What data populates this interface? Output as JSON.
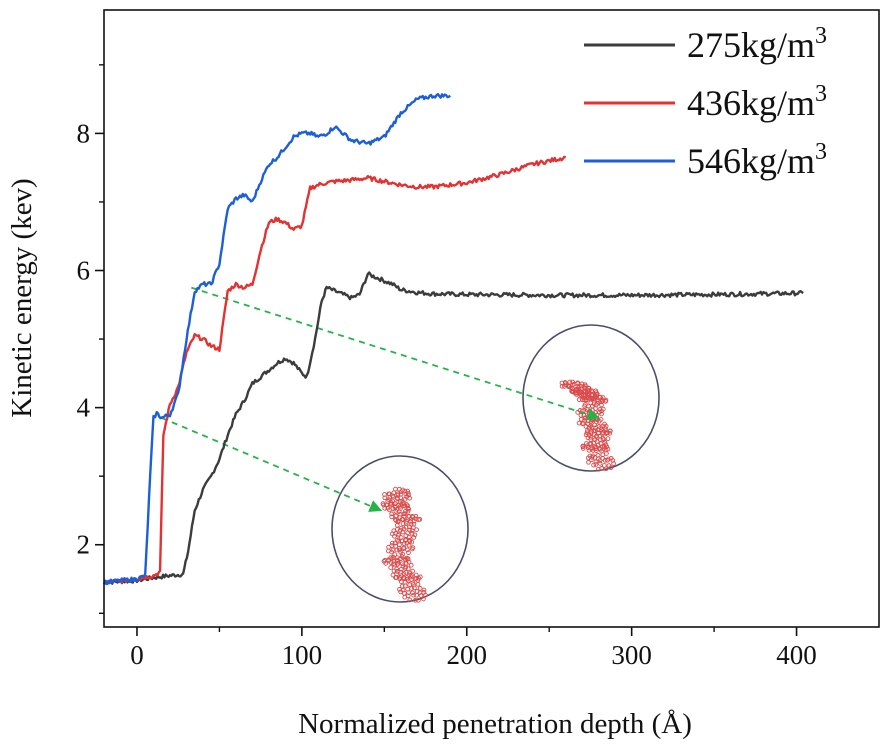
{
  "chart_data": {
    "type": "line",
    "title": "",
    "xlabel": "Normalized penetration depth (Å)",
    "ylabel": "Kinetic energy (kev)",
    "xlim": [
      -20,
      450
    ],
    "ylim": [
      0.8,
      9.8
    ],
    "xticks": [
      0,
      100,
      200,
      300,
      400
    ],
    "yticks": [
      2,
      4,
      6,
      8
    ],
    "x_tick_labels": [
      "0",
      "100",
      "200",
      "300",
      "400"
    ],
    "y_tick_labels": [
      "2",
      "4",
      "6",
      "8"
    ],
    "grid": false,
    "legend_position": "top-right",
    "series": [
      {
        "name": "275kg/m",
        "name_sup": "3",
        "color": "#3c3c3c",
        "x": [
          -20,
          0,
          10,
          20,
          28,
          31,
          35,
          40,
          45,
          50,
          55,
          60,
          65,
          70,
          75,
          80,
          85,
          90,
          95,
          100,
          103,
          108,
          112,
          115,
          120,
          125,
          130,
          135,
          140,
          145,
          150,
          155,
          160,
          170,
          180,
          200,
          250,
          300,
          350,
          404
        ],
        "y": [
          1.45,
          1.48,
          1.52,
          1.55,
          1.57,
          1.9,
          2.5,
          2.8,
          3.0,
          3.25,
          3.6,
          3.9,
          4.1,
          4.35,
          4.45,
          4.55,
          4.65,
          4.72,
          4.65,
          4.5,
          4.45,
          5.0,
          5.55,
          5.75,
          5.7,
          5.65,
          5.6,
          5.65,
          5.95,
          5.9,
          5.85,
          5.8,
          5.72,
          5.68,
          5.66,
          5.65,
          5.64,
          5.64,
          5.65,
          5.67
        ]
      },
      {
        "name": "436kg/m",
        "name_sup": "3",
        "color": "#e53131",
        "x": [
          -20,
          0,
          10,
          14,
          16,
          20,
          25,
          30,
          35,
          40,
          45,
          50,
          55,
          60,
          65,
          70,
          75,
          80,
          85,
          90,
          95,
          100,
          105,
          110,
          115,
          120,
          130,
          140,
          150,
          160,
          170,
          180,
          200,
          220,
          240,
          250,
          260
        ],
        "y": [
          1.45,
          1.5,
          1.55,
          1.6,
          3.6,
          4.05,
          4.3,
          4.8,
          5.05,
          5.0,
          4.9,
          4.85,
          5.7,
          5.8,
          5.75,
          5.8,
          6.3,
          6.7,
          6.75,
          6.7,
          6.6,
          6.65,
          7.2,
          7.25,
          7.28,
          7.3,
          7.32,
          7.35,
          7.3,
          7.25,
          7.22,
          7.22,
          7.28,
          7.4,
          7.55,
          7.6,
          7.65
        ]
      },
      {
        "name": "546kg/m",
        "name_sup": "3",
        "color": "#1c5fd8",
        "x": [
          -20,
          0,
          5,
          8,
          10,
          12,
          15,
          20,
          25,
          30,
          35,
          40,
          45,
          50,
          55,
          60,
          65,
          70,
          75,
          80,
          85,
          90,
          95,
          100,
          105,
          110,
          115,
          120,
          130,
          140,
          150,
          160,
          170,
          180,
          190
        ],
        "y": [
          1.45,
          1.5,
          1.55,
          3.0,
          3.85,
          3.92,
          3.85,
          3.9,
          4.2,
          5.0,
          5.7,
          5.8,
          5.8,
          6.1,
          6.9,
          7.05,
          7.1,
          7.0,
          7.3,
          7.55,
          7.65,
          7.8,
          7.95,
          8.0,
          8.0,
          7.95,
          8.0,
          8.1,
          7.9,
          7.85,
          7.95,
          8.3,
          8.5,
          8.55,
          8.55
        ]
      }
    ],
    "annotations": [
      {
        "kind": "dashed-arrow",
        "color": "#26b34a",
        "from": [
          33,
          5.75
        ],
        "to": [
          280,
          3.85
        ],
        "target": "inset-upper"
      },
      {
        "kind": "dashed-arrow",
        "color": "#26b34a",
        "from": [
          15,
          3.85
        ],
        "to": [
          148,
          2.5
        ],
        "target": "inset-lower"
      }
    ],
    "insets": [
      {
        "name": "inset-upper",
        "description_icon": "fragmented-graphene-structure",
        "color": "#d94b4b",
        "ring_color": "#4a4e6a"
      },
      {
        "name": "inset-lower",
        "description_icon": "fragmented-graphene-structure",
        "color": "#d94b4b",
        "ring_color": "#4a4e6a"
      }
    ]
  }
}
